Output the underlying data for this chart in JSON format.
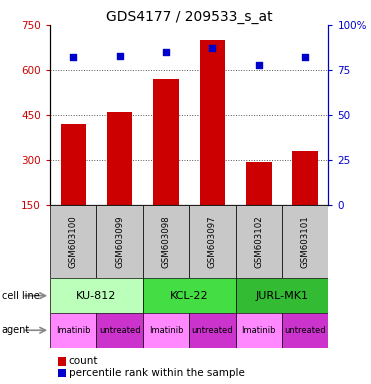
{
  "title": "GDS4177 / 209533_s_at",
  "samples": [
    "GSM603100",
    "GSM603099",
    "GSM603098",
    "GSM603097",
    "GSM603102",
    "GSM603101"
  ],
  "counts": [
    420,
    460,
    570,
    700,
    295,
    330
  ],
  "percentiles": [
    82,
    83,
    85,
    87,
    78,
    82
  ],
  "ylim_left": [
    150,
    750
  ],
  "yticks_left": [
    150,
    300,
    450,
    600,
    750
  ],
  "ylim_right": [
    0,
    100
  ],
  "yticks_right": [
    0,
    25,
    50,
    75,
    100
  ],
  "bar_color": "#cc0000",
  "dot_color": "#0000cc",
  "bar_width": 0.55,
  "cell_lines": [
    "KU-812",
    "KCL-22",
    "JURL-MK1"
  ],
  "cell_line_colors": [
    "#bbffbb",
    "#44dd44",
    "#33bb33"
  ],
  "cell_line_spans": [
    [
      0,
      2
    ],
    [
      2,
      4
    ],
    [
      4,
      6
    ]
  ],
  "agents": [
    "Imatinib",
    "untreated",
    "Imatinib",
    "untreated",
    "Imatinib",
    "untreated"
  ],
  "agent_colors_even": "#ff88ff",
  "agent_colors_odd": "#cc33cc",
  "sample_bg_color": "#c8c8c8",
  "grid_color": "#555555",
  "legend_count_color": "#cc0000",
  "legend_dot_color": "#0000cc",
  "title_fontsize": 10,
  "tick_fontsize": 7.5,
  "sample_fontsize": 6.2,
  "cell_fontsize": 8,
  "agent_fontsize": 6,
  "legend_fontsize": 7.5
}
